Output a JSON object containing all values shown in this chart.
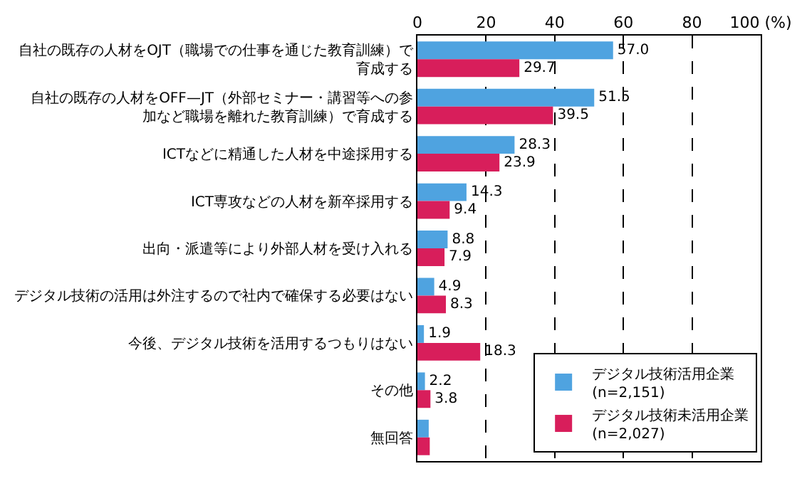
{
  "chart_data": {
    "type": "bar",
    "orientation": "horizontal",
    "categories": [
      "自社の既存の人材をOJT（職場での仕事を通じた教育訓練）で育成する",
      "自社の既存の人材をOFF—JT（外部セミナー・講習等への参加など職場を離れた教育訓練）で育成する",
      "ICTなどに精通した人材を中途採用する",
      "ICT専攻などの人材を新卒採用する",
      "出向・派遣等により外部人材を受け入れる",
      "デジタル技術の活用は外注するので社内で確保する必要はない",
      "今後、デジタル技術を活用するつもりはない",
      "その他",
      "無回答"
    ],
    "series": [
      {
        "name": "デジタル技術活用企業\n(n=2,151)",
        "color": "#4fa3e0",
        "values": [
          57.0,
          51.5,
          28.3,
          14.3,
          8.8,
          4.9,
          1.9,
          2.2,
          3.3
        ],
        "value_labels": [
          "57.0",
          "51.5",
          "28.3",
          "14.3",
          "8.8",
          "4.9",
          "1.9",
          "2.2",
          null
        ]
      },
      {
        "name": "デジタル技術未活用企業\n(n=2,027)",
        "color": "#d81e5b",
        "values": [
          29.7,
          39.5,
          23.9,
          9.4,
          7.9,
          8.3,
          18.3,
          3.8,
          3.6
        ],
        "value_labels": [
          "29.7",
          "39.5",
          "23.9",
          "9.4",
          "7.9",
          "8.3",
          "18.3",
          "3.8",
          null
        ]
      }
    ],
    "xlim": [
      0,
      100
    ],
    "xticks": [
      0,
      20,
      40,
      60,
      80,
      {
        "value": 100,
        "label": "100 (%)"
      }
    ],
    "grid": "x",
    "legend": "bottom right"
  }
}
